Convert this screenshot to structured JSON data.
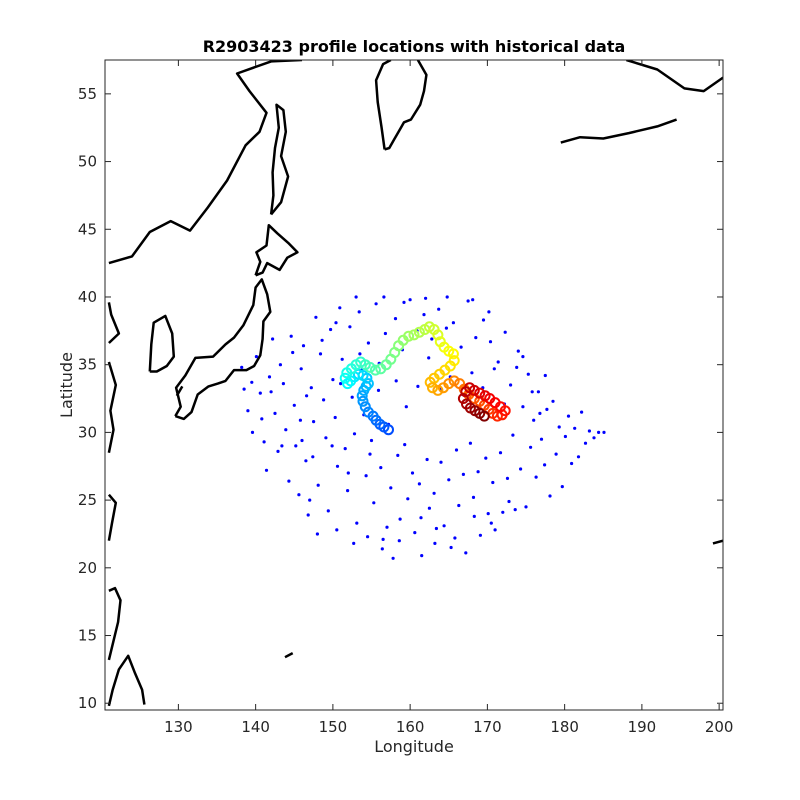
{
  "chart_data": {
    "type": "scatter",
    "title": "R2903423 profile locations with historical data",
    "xlabel": "Longitude",
    "ylabel": "Latitude",
    "xlim": [
      120.5,
      200.5
    ],
    "ylim": [
      9.5,
      57.5
    ],
    "x_ticks": [
      "130",
      "140",
      "150",
      "160",
      "170",
      "180",
      "190",
      "200"
    ],
    "x_tick_values": [
      130,
      140,
      150,
      160,
      170,
      180,
      190,
      200
    ],
    "y_ticks": [
      "10",
      "15",
      "20",
      "25",
      "30",
      "35",
      "40",
      "45",
      "50",
      "55"
    ],
    "y_tick_values": [
      10,
      15,
      20,
      25,
      30,
      35,
      40,
      45,
      50,
      55
    ],
    "grid": false,
    "legend": "none",
    "colors": {
      "historical": "#0000ff",
      "coastline": "#000000",
      "axes": "#262626",
      "float_colormap": "jet"
    },
    "series": [
      {
        "role": "historical",
        "points": [
          [
            138.2,
            34.8
          ],
          [
            138.5,
            33.2
          ],
          [
            139.0,
            31.6
          ],
          [
            139.6,
            30.0
          ],
          [
            140.1,
            35.6
          ],
          [
            140.6,
            32.9
          ],
          [
            141.1,
            29.3
          ],
          [
            141.4,
            27.2
          ],
          [
            141.8,
            34.1
          ],
          [
            142.2,
            36.9
          ],
          [
            142.5,
            31.4
          ],
          [
            142.9,
            28.6
          ],
          [
            143.2,
            35.0
          ],
          [
            143.6,
            33.6
          ],
          [
            143.9,
            30.2
          ],
          [
            144.3,
            26.4
          ],
          [
            144.6,
            37.1
          ],
          [
            145.0,
            32.0
          ],
          [
            145.2,
            29.0
          ],
          [
            145.6,
            25.4
          ],
          [
            145.9,
            34.7
          ],
          [
            146.2,
            36.4
          ],
          [
            146.5,
            27.9
          ],
          [
            146.8,
            23.9
          ],
          [
            147.2,
            33.3
          ],
          [
            147.5,
            30.8
          ],
          [
            147.8,
            38.5
          ],
          [
            148.1,
            26.1
          ],
          [
            148.4,
            35.8
          ],
          [
            148.8,
            32.4
          ],
          [
            149.1,
            29.6
          ],
          [
            149.4,
            24.2
          ],
          [
            149.7,
            37.6
          ],
          [
            150.0,
            33.9
          ],
          [
            150.3,
            31.1
          ],
          [
            150.6,
            27.5
          ],
          [
            150.9,
            39.2
          ],
          [
            151.2,
            35.4
          ],
          [
            151.6,
            28.8
          ],
          [
            151.9,
            25.7
          ],
          [
            152.2,
            37.8
          ],
          [
            152.5,
            32.6
          ],
          [
            152.8,
            29.9
          ],
          [
            153.1,
            23.3
          ],
          [
            153.4,
            38.9
          ],
          [
            153.7,
            34.6
          ],
          [
            154.0,
            31.3
          ],
          [
            154.3,
            26.8
          ],
          [
            154.6,
            36.6
          ],
          [
            155.0,
            29.4
          ],
          [
            155.3,
            24.8
          ],
          [
            155.6,
            39.5
          ],
          [
            155.9,
            33.1
          ],
          [
            156.2,
            27.4
          ],
          [
            156.5,
            22.1
          ],
          [
            156.8,
            37.3
          ],
          [
            157.2,
            30.6
          ],
          [
            157.5,
            25.9
          ],
          [
            157.8,
            20.7
          ],
          [
            158.1,
            38.4
          ],
          [
            158.4,
            28.3
          ],
          [
            158.7,
            23.6
          ],
          [
            159.0,
            36.1
          ],
          [
            159.3,
            29.1
          ],
          [
            159.7,
            25.1
          ],
          [
            160.0,
            39.8
          ],
          [
            160.3,
            27.0
          ],
          [
            160.6,
            22.6
          ],
          [
            160.9,
            37.5
          ],
          [
            161.2,
            26.2
          ],
          [
            161.5,
            20.9
          ],
          [
            161.8,
            38.7
          ],
          [
            162.2,
            28.0
          ],
          [
            162.5,
            24.4
          ],
          [
            162.8,
            36.9
          ],
          [
            163.1,
            25.5
          ],
          [
            163.4,
            22.9
          ],
          [
            163.7,
            39.1
          ],
          [
            164.0,
            27.8
          ],
          [
            164.4,
            23.1
          ],
          [
            164.7,
            37.7
          ],
          [
            165.0,
            26.5
          ],
          [
            165.3,
            21.5
          ],
          [
            165.6,
            38.1
          ],
          [
            166.0,
            28.7
          ],
          [
            166.3,
            24.6
          ],
          [
            166.6,
            36.3
          ],
          [
            166.9,
            26.9
          ],
          [
            167.2,
            21.1
          ],
          [
            167.5,
            39.7
          ],
          [
            167.8,
            29.2
          ],
          [
            168.2,
            25.2
          ],
          [
            168.5,
            37.0
          ],
          [
            168.8,
            27.1
          ],
          [
            169.1,
            22.4
          ],
          [
            169.5,
            38.3
          ],
          [
            169.8,
            28.1
          ],
          [
            170.1,
            24.0
          ],
          [
            170.4,
            36.7
          ],
          [
            170.7,
            26.3
          ],
          [
            171.0,
            22.8
          ],
          [
            171.4,
            35.2
          ],
          [
            171.7,
            28.5
          ],
          [
            172.0,
            24.1
          ],
          [
            172.3,
            37.4
          ],
          [
            172.6,
            26.6
          ],
          [
            173.0,
            33.5
          ],
          [
            173.3,
            29.8
          ],
          [
            173.6,
            24.3
          ],
          [
            174.0,
            36.0
          ],
          [
            174.3,
            27.3
          ],
          [
            174.6,
            31.9
          ],
          [
            175.0,
            24.5
          ],
          [
            175.3,
            34.3
          ],
          [
            175.6,
            28.9
          ],
          [
            176.0,
            30.9
          ],
          [
            176.3,
            26.7
          ],
          [
            176.6,
            33.0
          ],
          [
            177.0,
            29.5
          ],
          [
            177.4,
            27.6
          ],
          [
            177.7,
            31.7
          ],
          [
            178.1,
            25.3
          ],
          [
            178.5,
            32.3
          ],
          [
            178.9,
            28.4
          ],
          [
            179.3,
            30.4
          ],
          [
            179.7,
            26.0
          ],
          [
            180.1,
            29.7
          ],
          [
            180.5,
            31.2
          ],
          [
            180.9,
            27.7
          ],
          [
            181.3,
            30.3
          ],
          [
            181.8,
            28.2
          ],
          [
            182.2,
            31.5
          ],
          [
            182.7,
            29.2
          ],
          [
            183.2,
            30.1
          ],
          [
            183.8,
            29.6
          ],
          [
            184.4,
            30.0
          ],
          [
            185.1,
            30.0
          ],
          [
            139.5,
            33.7
          ],
          [
            140.8,
            31.0
          ],
          [
            142.0,
            33.0
          ],
          [
            143.4,
            29.0
          ],
          [
            144.8,
            35.9
          ],
          [
            145.8,
            30.9
          ],
          [
            146.6,
            32.7
          ],
          [
            147.4,
            28.2
          ],
          [
            148.6,
            36.8
          ],
          [
            149.9,
            29.0
          ],
          [
            151.0,
            33.6
          ],
          [
            152.0,
            27.0
          ],
          [
            153.5,
            35.8
          ],
          [
            154.8,
            28.4
          ],
          [
            156.0,
            35.1
          ],
          [
            157.0,
            23.0
          ],
          [
            158.2,
            33.8
          ],
          [
            159.5,
            31.9
          ],
          [
            161.0,
            33.4
          ],
          [
            162.4,
            35.5
          ],
          [
            163.9,
            33.2
          ],
          [
            165.2,
            34.1
          ],
          [
            166.8,
            32.8
          ],
          [
            168.0,
            34.4
          ],
          [
            169.4,
            33.3
          ],
          [
            170.9,
            34.7
          ],
          [
            172.2,
            32.1
          ],
          [
            173.8,
            34.8
          ],
          [
            175.8,
            33.0
          ],
          [
            177.5,
            34.2
          ],
          [
            146.0,
            29.4
          ],
          [
            147.0,
            25.0
          ],
          [
            148.0,
            22.5
          ],
          [
            150.5,
            22.8
          ],
          [
            152.7,
            21.8
          ],
          [
            154.5,
            22.3
          ],
          [
            156.4,
            21.4
          ],
          [
            158.6,
            22.0
          ],
          [
            161.4,
            23.7
          ],
          [
            163.2,
            21.8
          ],
          [
            165.8,
            22.2
          ],
          [
            168.3,
            23.8
          ],
          [
            170.5,
            23.3
          ],
          [
            172.8,
            24.9
          ],
          [
            150.4,
            38.1
          ],
          [
            153.0,
            40.0
          ],
          [
            156.6,
            40.0
          ],
          [
            159.2,
            39.6
          ],
          [
            162.0,
            39.9
          ],
          [
            164.8,
            40.0
          ],
          [
            168.1,
            39.8
          ],
          [
            170.2,
            38.9
          ],
          [
            174.6,
            35.6
          ],
          [
            176.8,
            31.4
          ]
        ]
      },
      {
        "role": "float",
        "points": [
          [
            157.2,
            30.2
          ],
          [
            156.6,
            30.4
          ],
          [
            156.1,
            30.6
          ],
          [
            155.6,
            30.9
          ],
          [
            155.2,
            31.2
          ],
          [
            154.6,
            31.5
          ],
          [
            154.2,
            31.9
          ],
          [
            153.9,
            32.3
          ],
          [
            153.8,
            32.7
          ],
          [
            154.0,
            33.1
          ],
          [
            154.3,
            33.4
          ],
          [
            154.6,
            33.6
          ],
          [
            154.4,
            34.0
          ],
          [
            153.9,
            34.2
          ],
          [
            153.3,
            34.3
          ],
          [
            152.8,
            34.1
          ],
          [
            152.3,
            33.8
          ],
          [
            151.9,
            33.6
          ],
          [
            151.6,
            34.0
          ],
          [
            151.8,
            34.4
          ],
          [
            152.4,
            34.7
          ],
          [
            153.0,
            35.0
          ],
          [
            153.6,
            35.2
          ],
          [
            154.2,
            35.0
          ],
          [
            154.8,
            34.8
          ],
          [
            155.5,
            34.6
          ],
          [
            156.2,
            34.7
          ],
          [
            156.9,
            35.0
          ],
          [
            157.5,
            35.4
          ],
          [
            158.0,
            35.9
          ],
          [
            158.5,
            36.4
          ],
          [
            159.1,
            36.8
          ],
          [
            159.8,
            37.1
          ],
          [
            160.5,
            37.2
          ],
          [
            161.2,
            37.4
          ],
          [
            161.9,
            37.6
          ],
          [
            162.5,
            37.8
          ],
          [
            163.1,
            37.6
          ],
          [
            163.6,
            37.2
          ],
          [
            163.9,
            36.7
          ],
          [
            164.4,
            36.3
          ],
          [
            165.0,
            36.0
          ],
          [
            165.6,
            35.8
          ],
          [
            165.7,
            35.3
          ],
          [
            165.2,
            34.9
          ],
          [
            164.5,
            34.6
          ],
          [
            163.8,
            34.3
          ],
          [
            163.1,
            34.0
          ],
          [
            162.6,
            33.7
          ],
          [
            162.9,
            33.3
          ],
          [
            163.6,
            33.1
          ],
          [
            164.3,
            33.3
          ],
          [
            165.0,
            33.6
          ],
          [
            165.7,
            33.8
          ],
          [
            166.4,
            33.6
          ],
          [
            167.0,
            33.2
          ],
          [
            167.6,
            32.8
          ],
          [
            168.3,
            32.5
          ],
          [
            169.0,
            32.3
          ],
          [
            169.6,
            32.0
          ],
          [
            170.2,
            31.7
          ],
          [
            170.7,
            31.4
          ],
          [
            171.3,
            31.2
          ],
          [
            171.9,
            31.3
          ],
          [
            172.3,
            31.6
          ],
          [
            171.7,
            31.9
          ],
          [
            171.0,
            32.2
          ],
          [
            170.3,
            32.5
          ],
          [
            169.7,
            32.7
          ],
          [
            169.0,
            32.9
          ],
          [
            168.3,
            33.1
          ],
          [
            167.7,
            33.3
          ],
          [
            167.2,
            33.0
          ],
          [
            166.9,
            32.5
          ],
          [
            167.3,
            32.1
          ],
          [
            167.8,
            31.8
          ],
          [
            168.4,
            31.6
          ],
          [
            169.0,
            31.4
          ],
          [
            169.6,
            31.2
          ]
        ]
      }
    ]
  }
}
